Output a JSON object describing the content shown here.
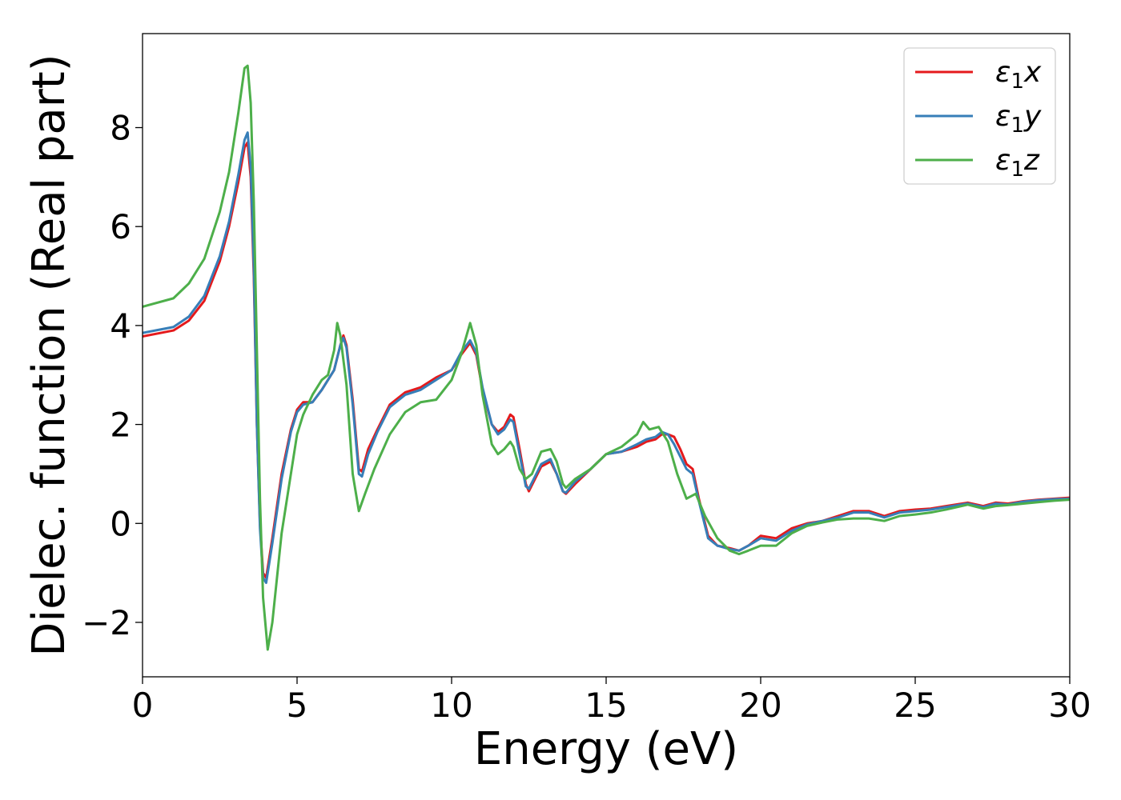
{
  "chart_data": {
    "type": "line",
    "title": "",
    "xlabel": "Energy (eV)",
    "ylabel": "Dielec. function (Real part)",
    "xlim": [
      0,
      30
    ],
    "ylim": [
      -3.1,
      9.9
    ],
    "xticks": [
      0,
      5,
      10,
      15,
      20,
      25,
      30
    ],
    "xtick_labels": [
      "0",
      "5",
      "10",
      "15",
      "20",
      "25",
      "30"
    ],
    "yticks": [
      -2,
      0,
      2,
      4,
      6,
      8
    ],
    "ytick_labels": [
      "−2",
      "0",
      "2",
      "4",
      "6",
      "8"
    ],
    "grid": false,
    "legend": {
      "placement": "top-right",
      "entries": [
        {
          "symbol": "ε",
          "sub": "1",
          "axis": "x"
        },
        {
          "symbol": "ε",
          "sub": "1",
          "axis": "y"
        },
        {
          "symbol": "ε",
          "sub": "1",
          "axis": "z"
        }
      ]
    },
    "series": [
      {
        "name": "ε1x",
        "color": "#e41a1c",
        "points": [
          [
            0,
            3.78
          ],
          [
            1,
            3.9
          ],
          [
            1.5,
            4.1
          ],
          [
            2,
            4.5
          ],
          [
            2.5,
            5.3
          ],
          [
            2.8,
            6.0
          ],
          [
            3.1,
            6.9
          ],
          [
            3.3,
            7.6
          ],
          [
            3.4,
            7.7
          ],
          [
            3.5,
            7.0
          ],
          [
            3.6,
            5.0
          ],
          [
            3.7,
            2.0
          ],
          [
            3.8,
            0.0
          ],
          [
            3.9,
            -1.0
          ],
          [
            4.0,
            -1.1
          ],
          [
            4.2,
            -0.3
          ],
          [
            4.5,
            1.0
          ],
          [
            4.8,
            1.9
          ],
          [
            5.0,
            2.3
          ],
          [
            5.2,
            2.45
          ],
          [
            5.5,
            2.45
          ],
          [
            5.8,
            2.7
          ],
          [
            6.0,
            2.9
          ],
          [
            6.2,
            3.1
          ],
          [
            6.4,
            3.6
          ],
          [
            6.5,
            3.8
          ],
          [
            6.6,
            3.6
          ],
          [
            6.8,
            2.5
          ],
          [
            7.0,
            1.1
          ],
          [
            7.1,
            1.05
          ],
          [
            7.3,
            1.5
          ],
          [
            7.6,
            1.9
          ],
          [
            8.0,
            2.4
          ],
          [
            8.5,
            2.65
          ],
          [
            9.0,
            2.75
          ],
          [
            9.5,
            2.95
          ],
          [
            10.0,
            3.1
          ],
          [
            10.3,
            3.4
          ],
          [
            10.6,
            3.65
          ],
          [
            10.8,
            3.4
          ],
          [
            11.0,
            2.7
          ],
          [
            11.3,
            2.0
          ],
          [
            11.5,
            1.85
          ],
          [
            11.7,
            1.95
          ],
          [
            11.9,
            2.2
          ],
          [
            12.0,
            2.15
          ],
          [
            12.2,
            1.5
          ],
          [
            12.4,
            0.8
          ],
          [
            12.5,
            0.65
          ],
          [
            12.7,
            0.9
          ],
          [
            12.9,
            1.15
          ],
          [
            13.2,
            1.25
          ],
          [
            13.4,
            1.0
          ],
          [
            13.6,
            0.65
          ],
          [
            13.7,
            0.6
          ],
          [
            14.0,
            0.8
          ],
          [
            14.5,
            1.1
          ],
          [
            15.0,
            1.4
          ],
          [
            15.5,
            1.45
          ],
          [
            16.0,
            1.55
          ],
          [
            16.3,
            1.65
          ],
          [
            16.6,
            1.7
          ],
          [
            16.8,
            1.8
          ],
          [
            17.0,
            1.8
          ],
          [
            17.2,
            1.75
          ],
          [
            17.4,
            1.5
          ],
          [
            17.6,
            1.2
          ],
          [
            17.8,
            1.1
          ],
          [
            18.0,
            0.5
          ],
          [
            18.3,
            -0.25
          ],
          [
            18.6,
            -0.45
          ],
          [
            19.0,
            -0.5
          ],
          [
            19.3,
            -0.55
          ],
          [
            19.6,
            -0.45
          ],
          [
            20.0,
            -0.25
          ],
          [
            20.5,
            -0.3
          ],
          [
            21.0,
            -0.1
          ],
          [
            21.5,
            0.0
          ],
          [
            22.0,
            0.05
          ],
          [
            22.5,
            0.15
          ],
          [
            23.0,
            0.25
          ],
          [
            23.5,
            0.25
          ],
          [
            24.0,
            0.15
          ],
          [
            24.5,
            0.25
          ],
          [
            25.0,
            0.28
          ],
          [
            25.5,
            0.3
          ],
          [
            26.0,
            0.35
          ],
          [
            26.7,
            0.42
          ],
          [
            27.2,
            0.35
          ],
          [
            27.6,
            0.42
          ],
          [
            28.0,
            0.4
          ],
          [
            28.5,
            0.45
          ],
          [
            29.0,
            0.48
          ],
          [
            29.5,
            0.5
          ],
          [
            30,
            0.52
          ]
        ]
      },
      {
        "name": "ε1y",
        "color": "#377eb8",
        "points": [
          [
            0,
            3.85
          ],
          [
            1,
            3.97
          ],
          [
            1.5,
            4.18
          ],
          [
            2,
            4.6
          ],
          [
            2.5,
            5.4
          ],
          [
            2.8,
            6.1
          ],
          [
            3.1,
            7.05
          ],
          [
            3.3,
            7.75
          ],
          [
            3.4,
            7.9
          ],
          [
            3.5,
            7.2
          ],
          [
            3.6,
            5.2
          ],
          [
            3.7,
            2.0
          ],
          [
            3.8,
            -0.1
          ],
          [
            3.9,
            -1.1
          ],
          [
            4.0,
            -1.2
          ],
          [
            4.2,
            -0.4
          ],
          [
            4.5,
            0.9
          ],
          [
            4.8,
            1.85
          ],
          [
            5.0,
            2.25
          ],
          [
            5.2,
            2.4
          ],
          [
            5.5,
            2.45
          ],
          [
            5.8,
            2.7
          ],
          [
            6.0,
            2.9
          ],
          [
            6.2,
            3.1
          ],
          [
            6.4,
            3.6
          ],
          [
            6.5,
            3.75
          ],
          [
            6.6,
            3.55
          ],
          [
            6.8,
            2.4
          ],
          [
            7.0,
            1.0
          ],
          [
            7.1,
            0.95
          ],
          [
            7.3,
            1.4
          ],
          [
            7.6,
            1.85
          ],
          [
            8.0,
            2.35
          ],
          [
            8.5,
            2.6
          ],
          [
            9.0,
            2.7
          ],
          [
            9.5,
            2.9
          ],
          [
            10.0,
            3.1
          ],
          [
            10.3,
            3.45
          ],
          [
            10.6,
            3.7
          ],
          [
            10.8,
            3.45
          ],
          [
            11.0,
            2.75
          ],
          [
            11.3,
            2.0
          ],
          [
            11.5,
            1.8
          ],
          [
            11.7,
            1.9
          ],
          [
            11.9,
            2.1
          ],
          [
            12.0,
            2.05
          ],
          [
            12.2,
            1.4
          ],
          [
            12.4,
            0.75
          ],
          [
            12.5,
            0.7
          ],
          [
            12.7,
            0.95
          ],
          [
            12.9,
            1.2
          ],
          [
            13.2,
            1.3
          ],
          [
            13.4,
            1.0
          ],
          [
            13.6,
            0.65
          ],
          [
            13.7,
            0.62
          ],
          [
            14.0,
            0.85
          ],
          [
            14.5,
            1.1
          ],
          [
            15.0,
            1.4
          ],
          [
            15.5,
            1.45
          ],
          [
            16.0,
            1.6
          ],
          [
            16.3,
            1.7
          ],
          [
            16.6,
            1.75
          ],
          [
            16.8,
            1.85
          ],
          [
            17.0,
            1.8
          ],
          [
            17.2,
            1.6
          ],
          [
            17.4,
            1.35
          ],
          [
            17.6,
            1.1
          ],
          [
            17.8,
            1.0
          ],
          [
            18.0,
            0.45
          ],
          [
            18.3,
            -0.3
          ],
          [
            18.6,
            -0.45
          ],
          [
            19.0,
            -0.52
          ],
          [
            19.3,
            -0.55
          ],
          [
            19.6,
            -0.45
          ],
          [
            20.0,
            -0.3
          ],
          [
            20.5,
            -0.35
          ],
          [
            21.0,
            -0.15
          ],
          [
            21.5,
            -0.02
          ],
          [
            22.0,
            0.05
          ],
          [
            22.5,
            0.12
          ],
          [
            23.0,
            0.22
          ],
          [
            23.5,
            0.22
          ],
          [
            24.0,
            0.12
          ],
          [
            24.5,
            0.22
          ],
          [
            25.0,
            0.25
          ],
          [
            25.5,
            0.28
          ],
          [
            26.0,
            0.33
          ],
          [
            26.7,
            0.4
          ],
          [
            27.2,
            0.33
          ],
          [
            27.6,
            0.4
          ],
          [
            28.0,
            0.38
          ],
          [
            28.5,
            0.44
          ],
          [
            29.0,
            0.47
          ],
          [
            29.5,
            0.49
          ],
          [
            30,
            0.5
          ]
        ]
      },
      {
        "name": "ε1z",
        "color": "#4daf4a",
        "points": [
          [
            0,
            4.38
          ],
          [
            1,
            4.55
          ],
          [
            1.5,
            4.85
          ],
          [
            2,
            5.35
          ],
          [
            2.5,
            6.3
          ],
          [
            2.8,
            7.1
          ],
          [
            3.1,
            8.3
          ],
          [
            3.3,
            9.2
          ],
          [
            3.4,
            9.25
          ],
          [
            3.5,
            8.5
          ],
          [
            3.6,
            6.5
          ],
          [
            3.7,
            3.5
          ],
          [
            3.8,
            0.5
          ],
          [
            3.9,
            -1.5
          ],
          [
            4.05,
            -2.55
          ],
          [
            4.2,
            -2.0
          ],
          [
            4.5,
            -0.2
          ],
          [
            4.8,
            1.0
          ],
          [
            5.0,
            1.8
          ],
          [
            5.2,
            2.2
          ],
          [
            5.5,
            2.6
          ],
          [
            5.8,
            2.9
          ],
          [
            6.0,
            3.0
          ],
          [
            6.2,
            3.5
          ],
          [
            6.3,
            4.05
          ],
          [
            6.4,
            3.8
          ],
          [
            6.6,
            2.8
          ],
          [
            6.8,
            1.0
          ],
          [
            7.0,
            0.25
          ],
          [
            7.2,
            0.6
          ],
          [
            7.5,
            1.1
          ],
          [
            8.0,
            1.8
          ],
          [
            8.5,
            2.25
          ],
          [
            9.0,
            2.45
          ],
          [
            9.5,
            2.5
          ],
          [
            10.0,
            2.9
          ],
          [
            10.3,
            3.4
          ],
          [
            10.6,
            4.05
          ],
          [
            10.8,
            3.6
          ],
          [
            11.0,
            2.6
          ],
          [
            11.3,
            1.6
          ],
          [
            11.5,
            1.4
          ],
          [
            11.7,
            1.5
          ],
          [
            11.9,
            1.65
          ],
          [
            12.0,
            1.55
          ],
          [
            12.2,
            1.1
          ],
          [
            12.4,
            0.9
          ],
          [
            12.6,
            1.0
          ],
          [
            12.9,
            1.45
          ],
          [
            13.2,
            1.5
          ],
          [
            13.4,
            1.25
          ],
          [
            13.6,
            0.8
          ],
          [
            13.7,
            0.72
          ],
          [
            14.0,
            0.9
          ],
          [
            14.5,
            1.1
          ],
          [
            15.0,
            1.4
          ],
          [
            15.5,
            1.55
          ],
          [
            16.0,
            1.8
          ],
          [
            16.2,
            2.05
          ],
          [
            16.4,
            1.9
          ],
          [
            16.7,
            1.95
          ],
          [
            17.0,
            1.65
          ],
          [
            17.3,
            1.0
          ],
          [
            17.6,
            0.5
          ],
          [
            17.9,
            0.6
          ],
          [
            18.2,
            0.15
          ],
          [
            18.6,
            -0.3
          ],
          [
            19.0,
            -0.55
          ],
          [
            19.3,
            -0.62
          ],
          [
            19.6,
            -0.55
          ],
          [
            20.0,
            -0.45
          ],
          [
            20.5,
            -0.45
          ],
          [
            21.0,
            -0.2
          ],
          [
            21.5,
            -0.05
          ],
          [
            22.0,
            0.02
          ],
          [
            22.5,
            0.08
          ],
          [
            23.0,
            0.1
          ],
          [
            23.5,
            0.1
          ],
          [
            24.0,
            0.05
          ],
          [
            24.5,
            0.15
          ],
          [
            25.0,
            0.18
          ],
          [
            25.5,
            0.22
          ],
          [
            26.0,
            0.28
          ],
          [
            26.7,
            0.38
          ],
          [
            27.2,
            0.3
          ],
          [
            27.6,
            0.35
          ],
          [
            28.0,
            0.37
          ],
          [
            28.5,
            0.4
          ],
          [
            29.0,
            0.43
          ],
          [
            29.5,
            0.46
          ],
          [
            30,
            0.48
          ]
        ]
      }
    ]
  }
}
